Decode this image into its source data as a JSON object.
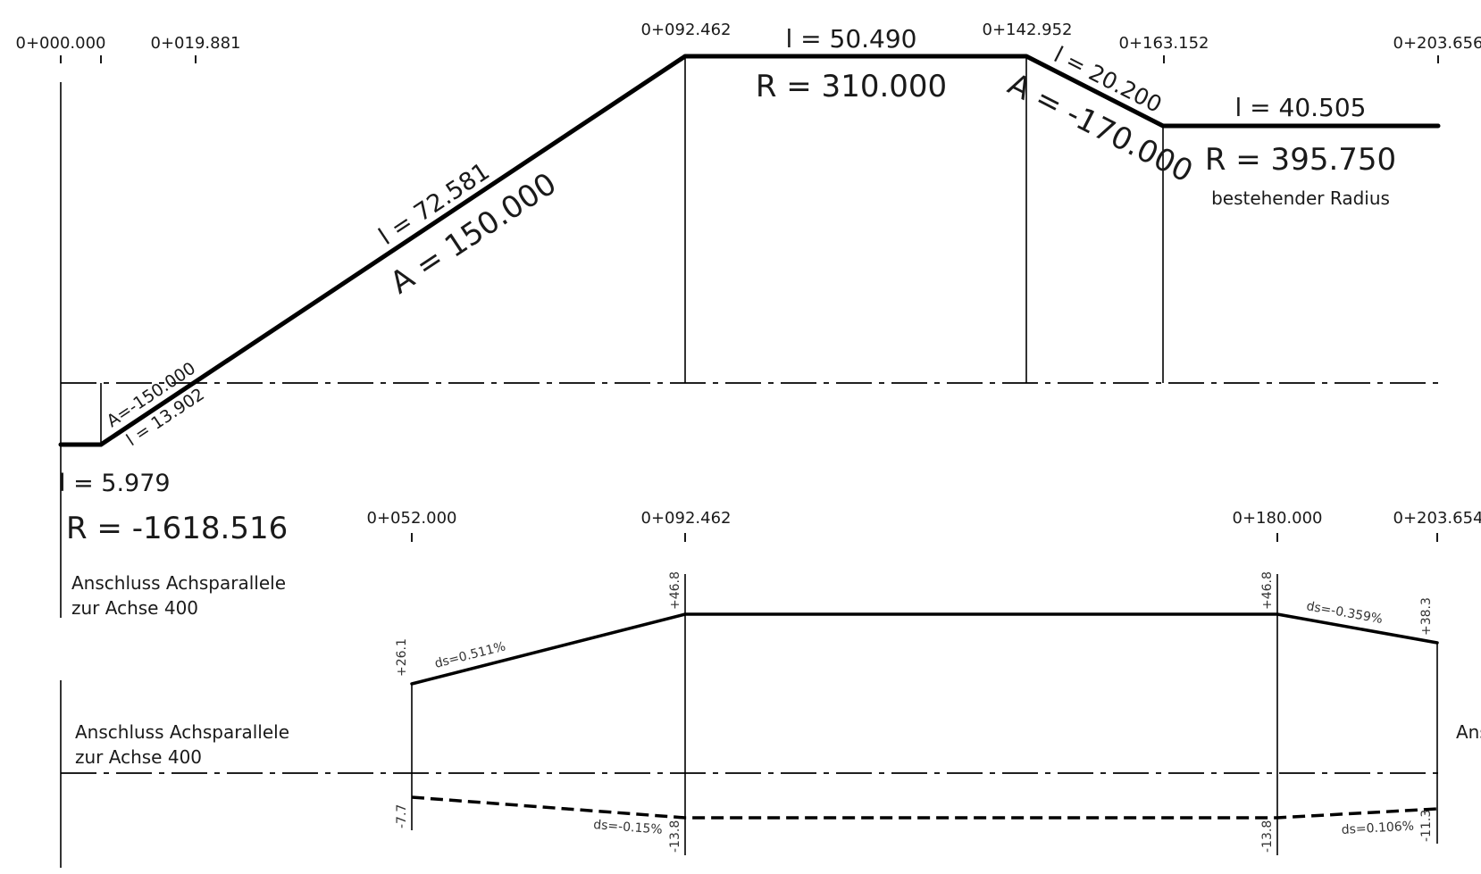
{
  "plan": {
    "stations": [
      "0+000.000",
      "0+019.881",
      "0+092.462",
      "0+142.952",
      "0+163.152",
      "0+203.656"
    ],
    "labels": {
      "element1_length": "l = 5.979",
      "element1_radius": "R = -1618.516",
      "element2_param": "A=-150.000",
      "element2_length": "l = 13.902",
      "element3_length": "l = 72.581",
      "element3_param": "A = 150.000",
      "element4_length": "l = 50.490",
      "element4_radius": "R = 310.000",
      "element5_length": "l = 20.200",
      "element5_param": "A = -170.000",
      "element6_length": "l = 40.505",
      "element6_radius": "R = 395.750",
      "element6_note": "bestehender Radius"
    },
    "connection_note_line1": "Anschluss Achsparallele",
    "connection_note_line2": "zur Achse 400"
  },
  "profile": {
    "stations": [
      "0+052.000",
      "0+092.462",
      "0+180.000",
      "0+203.654"
    ],
    "upper_values": [
      "+26.1",
      "+46.8",
      "+46.8",
      "+38.3"
    ],
    "upper_slopes": [
      "ds=0.511%",
      "ds=-0.359%"
    ],
    "lower_values": [
      "-7.7",
      "-13.8",
      "-13.8",
      "-11.3"
    ],
    "lower_slopes": [
      "ds=-0.15%",
      "ds=0.106%"
    ],
    "connection_note_line1": "Anschluss Achsparallele",
    "connection_note_line2": "zur Achse 400",
    "right_cut_text": "Ans"
  }
}
